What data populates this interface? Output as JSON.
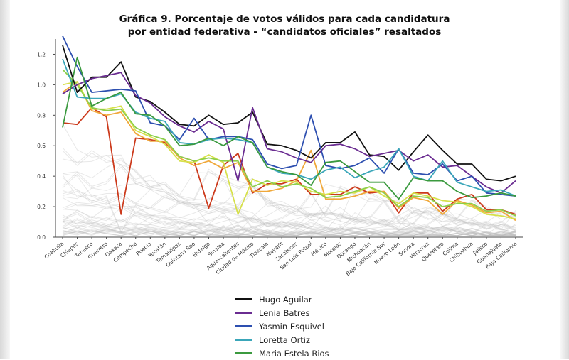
{
  "chart_data": {
    "type": "line",
    "title": "Gráfica 9. Porcentaje  de votos válidos para cada candidatura por entidad federativa - “candidatos oficiales” resaltados",
    "xlabel": "",
    "ylabel": "",
    "ylim": [
      0,
      1.3
    ],
    "yticks": [
      "0.0",
      "0.2",
      "0.4",
      "0.6",
      "0.8",
      "1.0",
      "1.2"
    ],
    "grid": false,
    "legend_position": "bottom",
    "categories": [
      "Coahuila",
      "Chiapas",
      "Tabasco",
      "Guerrero",
      "Oaxaca",
      "Campeche",
      "Puebla",
      "Yucatán",
      "Tamaulipas",
      "Quintana Roo",
      "Hidalgo",
      "Sinaloa",
      "Aguascalientes",
      "Ciudad de México",
      "Tlaxcala",
      "Nayarit",
      "Zacatecas",
      "San Luis Potosí",
      "México",
      "Morelos",
      "Durango",
      "Michoacán",
      "Baja California Sur",
      "Nuevo León",
      "Sonora",
      "Veracruz",
      "Querétaro",
      "Colima",
      "Chihuahua",
      "Jalisco",
      "Guanajuato",
      "Baja California"
    ],
    "series": [
      {
        "name": "Hugo Aguilar",
        "color": "#111111",
        "values": [
          1.26,
          0.95,
          1.05,
          1.05,
          1.15,
          0.92,
          0.89,
          0.82,
          0.74,
          0.73,
          0.8,
          0.74,
          0.75,
          0.82,
          0.61,
          0.6,
          0.57,
          0.52,
          0.62,
          0.62,
          0.69,
          0.54,
          0.53,
          0.44,
          0.56,
          0.67,
          0.57,
          0.48,
          0.48,
          0.38,
          0.37,
          0.4
        ]
      },
      {
        "name": "Lenia Batres",
        "color": "#6a2c91",
        "values": [
          0.94,
          1.0,
          1.04,
          1.06,
          1.08,
          0.93,
          0.88,
          0.79,
          0.73,
          0.69,
          0.76,
          0.71,
          0.37,
          0.85,
          0.58,
          0.56,
          0.52,
          0.49,
          0.6,
          0.61,
          0.58,
          0.53,
          0.55,
          0.57,
          0.5,
          0.54,
          0.46,
          0.47,
          0.4,
          0.33,
          0.29,
          0.37
        ]
      },
      {
        "name": "Yasmin Esquivel",
        "color": "#2d4fb0",
        "values": [
          1.32,
          1.12,
          0.95,
          0.96,
          0.97,
          0.96,
          0.75,
          0.73,
          0.64,
          0.78,
          0.64,
          0.66,
          0.66,
          0.64,
          0.48,
          0.45,
          0.47,
          0.8,
          0.47,
          0.45,
          0.47,
          0.52,
          0.42,
          0.58,
          0.42,
          0.41,
          0.48,
          0.37,
          0.4,
          0.29,
          0.28,
          0.27
        ]
      },
      {
        "name": "Loretta Ortiz",
        "color": "#3aa6b9",
        "values": [
          1.17,
          0.92,
          0.91,
          0.91,
          0.94,
          0.82,
          0.78,
          0.76,
          0.62,
          0.61,
          0.64,
          0.65,
          0.64,
          0.62,
          0.46,
          0.42,
          0.41,
          0.38,
          0.44,
          0.46,
          0.39,
          0.43,
          0.46,
          0.58,
          0.4,
          0.37,
          0.5,
          0.36,
          0.33,
          0.3,
          0.31,
          0.27
        ]
      },
      {
        "name": "Maria Estela Rios",
        "color": "#3b9a3f",
        "values": [
          0.72,
          1.18,
          0.86,
          0.91,
          0.95,
          0.81,
          0.8,
          0.73,
          0.6,
          0.61,
          0.65,
          0.6,
          0.66,
          0.62,
          0.46,
          0.43,
          0.41,
          0.34,
          0.49,
          0.5,
          0.43,
          0.36,
          0.36,
          0.25,
          0.39,
          0.37,
          0.37,
          0.3,
          0.26,
          0.27,
          0.29,
          0.27
        ]
      },
      {
        "name": "",
        "color": "#cc3a1c",
        "values": [
          0.75,
          0.74,
          0.85,
          0.79,
          0.15,
          0.65,
          0.64,
          0.62,
          0.53,
          0.5,
          0.19,
          0.47,
          0.55,
          0.29,
          0.35,
          0.35,
          0.38,
          0.28,
          0.28,
          0.28,
          0.33,
          0.29,
          0.3,
          0.16,
          0.29,
          0.29,
          0.17,
          0.25,
          0.28,
          0.18,
          0.18,
          0.15
        ]
      },
      {
        "name": "",
        "color": "#f0a83a",
        "values": [
          0.95,
          1.02,
          0.83,
          0.8,
          0.82,
          0.68,
          0.63,
          0.63,
          0.52,
          0.47,
          0.5,
          0.45,
          0.49,
          0.3,
          0.3,
          0.32,
          0.37,
          0.57,
          0.25,
          0.25,
          0.27,
          0.3,
          0.3,
          0.19,
          0.26,
          0.24,
          0.15,
          0.24,
          0.21,
          0.16,
          0.17,
          0.11
        ]
      },
      {
        "name": "",
        "color": "#d6e04a",
        "values": [
          1.0,
          1.02,
          0.84,
          0.84,
          0.86,
          0.7,
          0.66,
          0.61,
          0.5,
          0.49,
          0.54,
          0.49,
          0.15,
          0.38,
          0.34,
          0.37,
          0.36,
          0.3,
          0.28,
          0.3,
          0.29,
          0.33,
          0.27,
          0.22,
          0.29,
          0.27,
          0.24,
          0.23,
          0.2,
          0.15,
          0.14,
          0.12
        ]
      },
      {
        "name": "",
        "color": "#8ccf4a",
        "values": [
          1.1,
          1.0,
          0.85,
          0.83,
          0.84,
          0.72,
          0.67,
          0.64,
          0.53,
          0.5,
          0.52,
          0.5,
          0.5,
          0.33,
          0.37,
          0.33,
          0.35,
          0.32,
          0.26,
          0.27,
          0.3,
          0.33,
          0.29,
          0.2,
          0.27,
          0.26,
          0.2,
          0.22,
          0.22,
          0.17,
          0.18,
          0.14
        ]
      }
    ]
  },
  "legend": {
    "items": [
      {
        "label": "Hugo Aguilar",
        "color": "#111111"
      },
      {
        "label": "Lenia Batres",
        "color": "#6a2c91"
      },
      {
        "label": "Yasmin Esquivel",
        "color": "#2d4fb0"
      },
      {
        "label": "Loretta Ortiz",
        "color": "#3aa6b9"
      },
      {
        "label": "Maria Estela Rios",
        "color": "#3b9a3f"
      }
    ]
  }
}
